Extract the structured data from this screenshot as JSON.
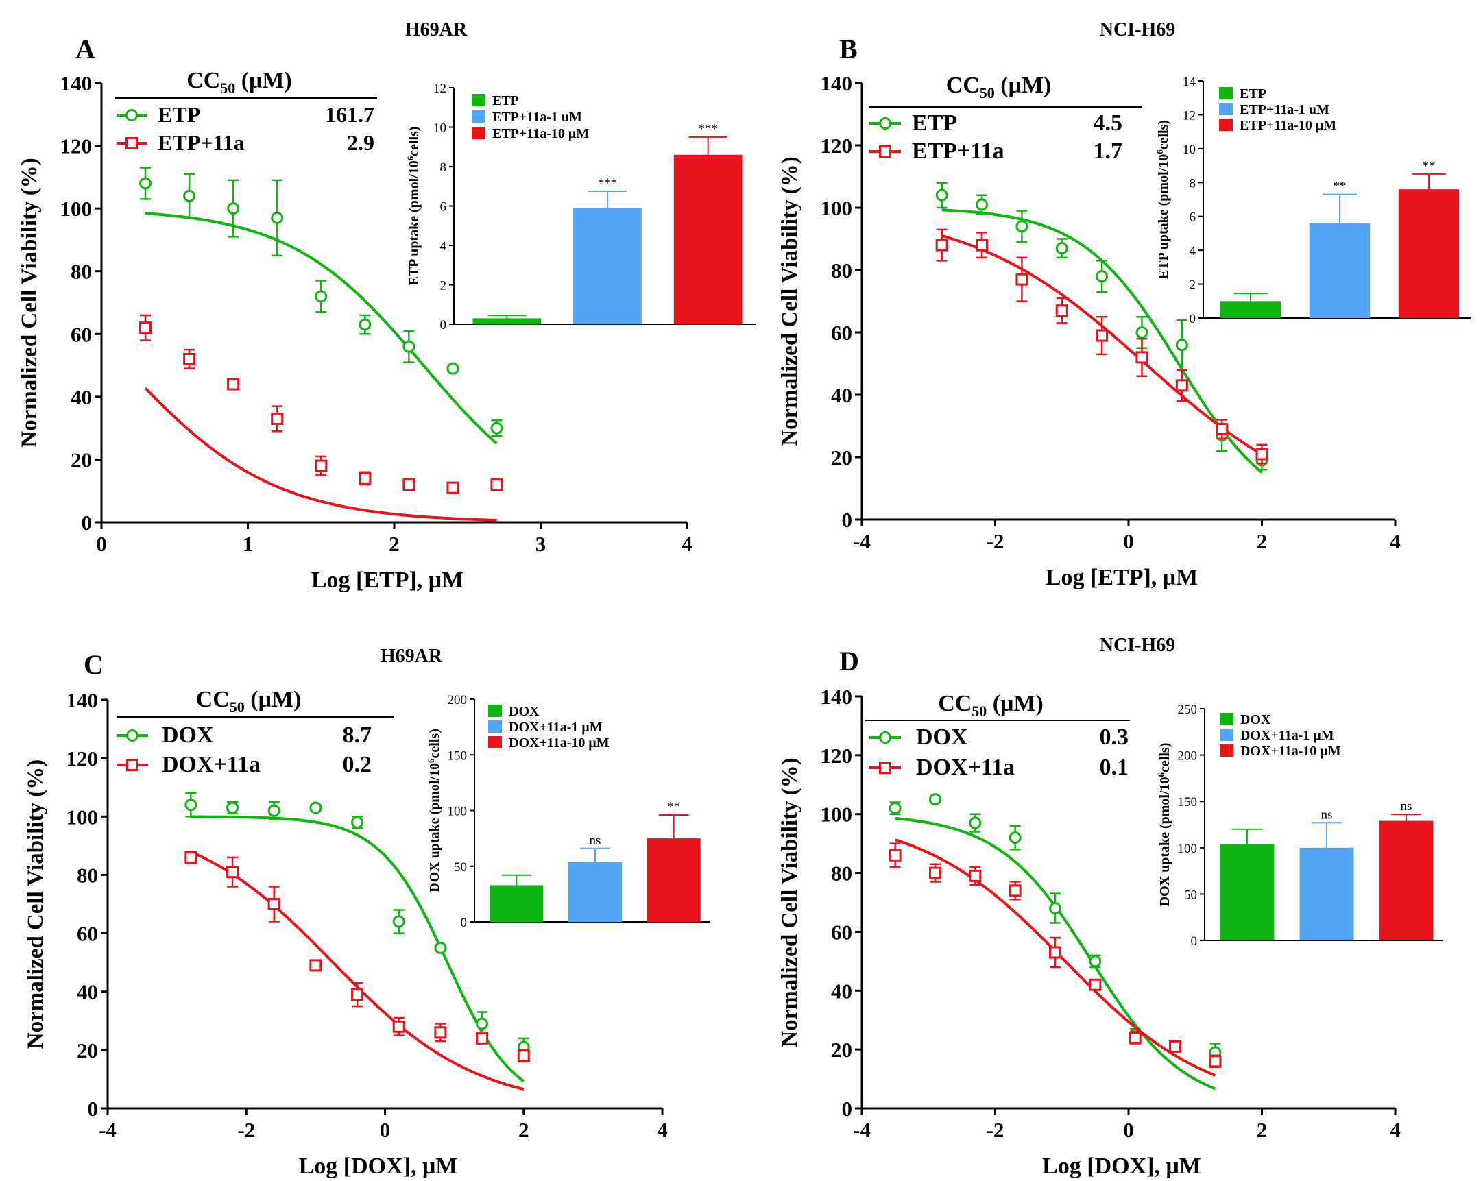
{
  "figure": {
    "background": "#ffffff",
    "green": "#11b511",
    "red": "#e8141c",
    "blue": "#54a5f5"
  },
  "chart_data": [
    {
      "panel": "A",
      "title": "H69AR",
      "type": "scatter",
      "xlabel": "Log [ETP], μM",
      "ylabel": "Normalized Cell Viability (%)",
      "xlim": [
        0,
        4
      ],
      "xticks": [
        0,
        1,
        2,
        3,
        4
      ],
      "ylim": [
        0,
        140
      ],
      "yticks": [
        0,
        20,
        40,
        60,
        80,
        100,
        120,
        140
      ],
      "cc50_header": "CC",
      "cc50_sub": "50",
      "cc50_unit": "(μM)",
      "series": [
        {
          "name": "ETP",
          "cc50": "161.7",
          "color": "#11b511",
          "marker": "circle",
          "x": [
            0.3,
            0.6,
            0.9,
            1.2,
            1.5,
            1.8,
            2.1,
            2.4,
            2.7
          ],
          "y": [
            108,
            104,
            100,
            97,
            72,
            63,
            56,
            49,
            30
          ],
          "err": [
            5,
            7,
            9,
            12,
            5,
            3,
            5,
            1,
            2.5
          ],
          "fit": {
            "top": 100,
            "bottom": 0,
            "logec50": 2.2,
            "hill": 0.95
          }
        },
        {
          "name": "ETP+11a",
          "cc50": "2.9",
          "color": "#e8141c",
          "marker": "square",
          "x": [
            0.3,
            0.6,
            0.9,
            1.2,
            1.5,
            1.8,
            2.1,
            2.4,
            2.7
          ],
          "y": [
            62,
            52,
            44,
            33,
            18,
            14,
            12,
            11,
            12
          ],
          "err": [
            4,
            3,
            1.5,
            4,
            3,
            2,
            1.5,
            1,
            1
          ],
          "fit": {
            "top": 100,
            "bottom": 0,
            "logec50": 0.15,
            "hill": 0.85
          }
        }
      ],
      "inset": {
        "type": "bar",
        "ylabel": "ETP uptake (pmol/10",
        "ylabel_sup": "6",
        "ylabel_tail": "cells)",
        "ylim": [
          0,
          12
        ],
        "yticks": [
          0,
          2,
          4,
          6,
          8,
          10,
          12
        ],
        "categories": [
          "ETP",
          "ETP+11a-1 uM",
          "ETP+11a-10 μM"
        ],
        "values": [
          0.3,
          5.9,
          8.6
        ],
        "errors": [
          0.15,
          0.85,
          0.9
        ],
        "labels": [
          "",
          "***",
          "***"
        ]
      }
    },
    {
      "panel": "B",
      "title": "NCI-H69",
      "type": "scatter",
      "xlabel": "Log [ETP], μM",
      "ylabel": "Normalized Cell Viability (%)",
      "xlim": [
        -4,
        4
      ],
      "xticks": [
        -4,
        -2,
        0,
        2,
        4
      ],
      "ylim": [
        0,
        140
      ],
      "yticks": [
        0,
        20,
        40,
        60,
        80,
        100,
        120,
        140
      ],
      "cc50_header": "CC",
      "cc50_sub": "50",
      "cc50_unit": "(μM)",
      "series": [
        {
          "name": "ETP",
          "cc50": "4.5",
          "color": "#11b511",
          "marker": "circle",
          "x": [
            -2.8,
            -2.2,
            -1.6,
            -1.0,
            -0.4,
            0.2,
            0.8,
            1.4,
            2.0
          ],
          "y": [
            104,
            101,
            94,
            87,
            78,
            60,
            56,
            27,
            19
          ],
          "err": [
            4,
            3,
            5,
            3,
            5,
            5,
            8,
            5,
            3
          ],
          "fit": {
            "top": 100,
            "bottom": 0,
            "logec50": 0.75,
            "hill": 0.6
          }
        },
        {
          "name": "ETP+11a",
          "cc50": "1.7",
          "color": "#e8141c",
          "marker": "square",
          "x": [
            -2.8,
            -2.2,
            -1.6,
            -1.0,
            -0.4,
            0.2,
            0.8,
            1.4,
            2.0
          ],
          "y": [
            88,
            88,
            77,
            67,
            59,
            52,
            43,
            29,
            21
          ],
          "err": [
            5,
            4,
            7,
            4,
            6,
            6,
            5,
            3,
            3
          ],
          "fit": {
            "top": 100,
            "bottom": 0,
            "logec50": 0.25,
            "hill": 0.33
          }
        }
      ],
      "inset": {
        "type": "bar",
        "ylabel": "ETP uptake (pmol/10",
        "ylabel_sup": "6",
        "ylabel_tail": "cells)",
        "ylim": [
          0,
          14
        ],
        "yticks": [
          0,
          2,
          4,
          6,
          8,
          10,
          12,
          14
        ],
        "categories": [
          "ETP",
          "ETP+11a-1 uM",
          "ETP+11a-10 μM"
        ],
        "values": [
          1.0,
          5.6,
          7.6
        ],
        "errors": [
          0.45,
          1.7,
          0.9
        ],
        "labels": [
          "",
          "**",
          "**"
        ]
      }
    },
    {
      "panel": "C",
      "title": "H69AR",
      "type": "scatter",
      "xlabel": "Log [DOX], μM",
      "ylabel": "Normalized Cell Viability (%)",
      "xlim": [
        -4,
        4
      ],
      "xticks": [
        -4,
        -2,
        0,
        2,
        4
      ],
      "ylim": [
        0,
        140
      ],
      "yticks": [
        0,
        20,
        40,
        60,
        80,
        100,
        120,
        140
      ],
      "cc50_header": "CC",
      "cc50_sub": "50",
      "cc50_unit": "(μM)",
      "series": [
        {
          "name": "DOX",
          "cc50": "8.7",
          "color": "#11b511",
          "marker": "circle",
          "x": [
            -2.8,
            -2.2,
            -1.6,
            -1.0,
            -0.4,
            0.2,
            0.8,
            1.4,
            2.0
          ],
          "y": [
            104,
            103,
            102,
            103,
            98,
            64,
            55,
            29,
            21
          ],
          "err": [
            4,
            2,
            3,
            1,
            2,
            4,
            1,
            4,
            3
          ],
          "fit": {
            "top": 100,
            "bottom": 0,
            "logec50": 0.9,
            "hill": 0.9
          }
        },
        {
          "name": "DOX+11a",
          "cc50": "0.2",
          "color": "#e8141c",
          "marker": "square",
          "x": [
            -2.8,
            -2.2,
            -1.6,
            -1.0,
            -0.4,
            0.2,
            0.8,
            1.4,
            2.0
          ],
          "y": [
            86,
            81,
            70,
            49,
            39,
            28,
            26,
            24,
            18
          ],
          "err": [
            2,
            5,
            6,
            1,
            4,
            3,
            3,
            1,
            2
          ],
          "fit": {
            "top": 100,
            "bottom": 0,
            "logec50": -0.75,
            "hill": 0.42
          }
        }
      ],
      "inset": {
        "type": "bar",
        "ylabel": "DOX uptake (pmol/10",
        "ylabel_sup": "6",
        "ylabel_tail": "cells)",
        "ylim": [
          0,
          200
        ],
        "yticks": [
          0,
          50,
          100,
          150,
          200
        ],
        "categories": [
          "DOX",
          "DOX+11a-1 μM",
          "DOX+11a-10 μM"
        ],
        "values": [
          33,
          54,
          75
        ],
        "errors": [
          9,
          12,
          21
        ],
        "labels": [
          "",
          "ns",
          "**"
        ]
      }
    },
    {
      "panel": "D",
      "title": "NCI-H69",
      "type": "scatter",
      "xlabel": "Log [DOX], μM",
      "ylabel": "Normalized Cell Viability (%)",
      "xlim": [
        -4,
        4
      ],
      "xticks": [
        -4,
        -2,
        0,
        2,
        4
      ],
      "ylim": [
        0,
        140
      ],
      "yticks": [
        0,
        20,
        40,
        60,
        80,
        100,
        120,
        140
      ],
      "cc50_header": "CC",
      "cc50_sub": "50",
      "cc50_unit": "(μM)",
      "series": [
        {
          "name": "DOX",
          "cc50": "0.3",
          "color": "#11b511",
          "marker": "circle",
          "x": [
            -3.5,
            -2.9,
            -2.3,
            -1.7,
            -1.1,
            -0.5,
            0.1,
            0.7,
            1.3
          ],
          "y": [
            102,
            105,
            97,
            92,
            68,
            50,
            25,
            21,
            19
          ],
          "err": [
            2,
            1,
            3,
            4,
            5,
            2,
            2,
            1,
            3
          ],
          "fit": {
            "top": 100,
            "bottom": 0,
            "logec50": -0.55,
            "hill": 0.62
          }
        },
        {
          "name": "DOX+11a",
          "cc50": "0.1",
          "color": "#e8141c",
          "marker": "square",
          "x": [
            -3.5,
            -2.9,
            -2.3,
            -1.7,
            -1.1,
            -0.5,
            0.1,
            0.7,
            1.3
          ],
          "y": [
            86,
            80,
            79,
            74,
            53,
            42,
            24,
            21,
            16
          ],
          "err": [
            4,
            3,
            3,
            3,
            5,
            1,
            2,
            1,
            2
          ],
          "fit": {
            "top": 100,
            "bottom": 0,
            "logec50": -0.95,
            "hill": 0.4
          }
        }
      ],
      "inset": {
        "type": "bar",
        "ylabel": "DOX uptake (pmol/10",
        "ylabel_sup": "6",
        "ylabel_tail": "cells)",
        "ylim": [
          0,
          250
        ],
        "yticks": [
          0,
          50,
          100,
          150,
          200,
          250
        ],
        "categories": [
          "DOX",
          "DOX+11a-1 μM",
          "DOX+11a-10 μM"
        ],
        "values": [
          104,
          100,
          129
        ],
        "errors": [
          16,
          27,
          7
        ],
        "labels": [
          "",
          "ns",
          "ns"
        ]
      }
    }
  ]
}
